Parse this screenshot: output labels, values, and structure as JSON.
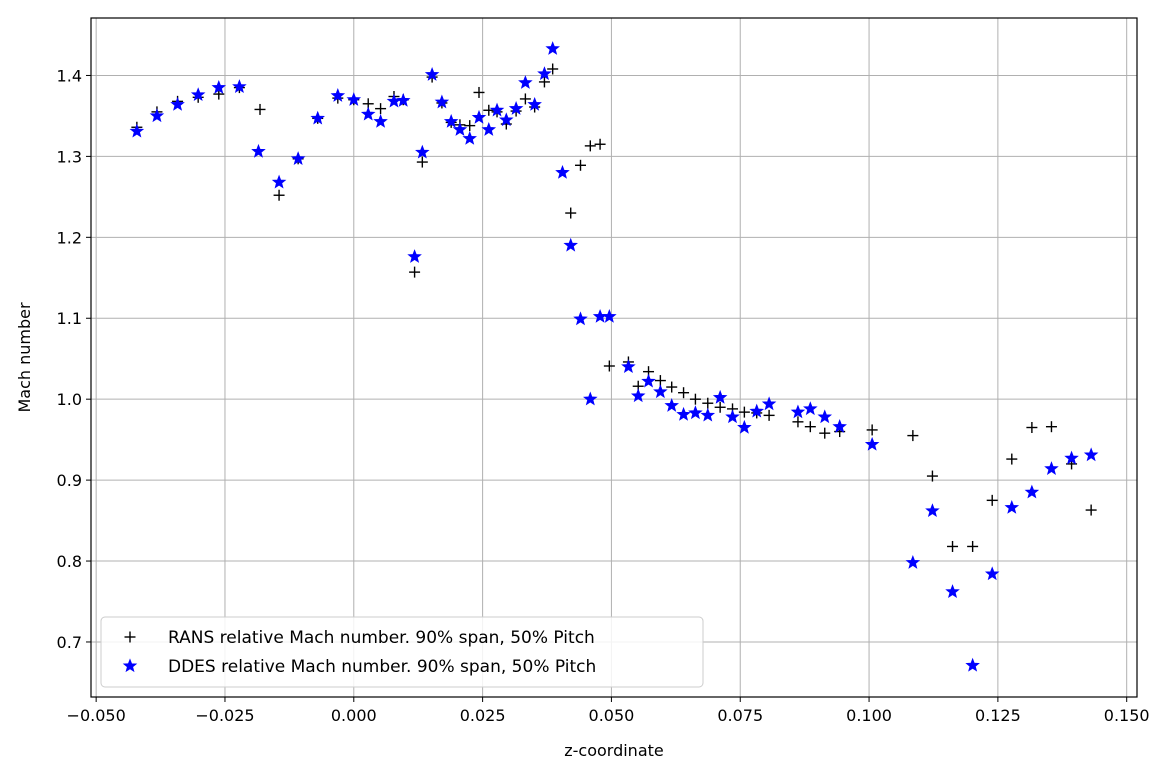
{
  "chart_data": {
    "type": "scatter",
    "xlabel": "z-coordinate",
    "ylabel": "Mach number",
    "xlim": [
      -0.051,
      0.152
    ],
    "ylim": [
      0.632,
      1.471
    ],
    "xticks": [
      -0.05,
      -0.025,
      0.0,
      0.025,
      0.05,
      0.075,
      0.1,
      0.125,
      0.15
    ],
    "xtick_labels": [
      "−0.050",
      "−0.025",
      "0.000",
      "0.025",
      "0.050",
      "0.075",
      "0.100",
      "0.125",
      "0.150"
    ],
    "yticks": [
      0.7,
      0.8,
      0.9,
      1.0,
      1.1,
      1.2,
      1.3,
      1.4
    ],
    "ytick_labels": [
      "0.7",
      "0.8",
      "0.9",
      "1.0",
      "1.1",
      "1.2",
      "1.3",
      "1.4"
    ],
    "grid": true,
    "legend_position": "bottom-left",
    "series": [
      {
        "name": "RANS relative Mach number. 90% span, 50% Pitch",
        "marker": "plus",
        "color": "#000000",
        "points": [
          [
            -0.0421,
            1.336
          ],
          [
            -0.0382,
            1.355
          ],
          [
            -0.0342,
            1.368
          ],
          [
            -0.0302,
            1.373
          ],
          [
            -0.0262,
            1.377
          ],
          [
            -0.0222,
            1.385
          ],
          [
            -0.0182,
            1.358
          ],
          [
            -0.0145,
            1.252
          ],
          [
            -0.0108,
            1.297
          ],
          [
            -0.007,
            1.347
          ],
          [
            -0.0031,
            1.372
          ],
          [
            0.0,
            1.37
          ],
          [
            0.0028,
            1.365
          ],
          [
            0.0052,
            1.359
          ],
          [
            0.0078,
            1.374
          ],
          [
            0.0096,
            1.37
          ],
          [
            0.0118,
            1.157
          ],
          [
            0.0133,
            1.293
          ],
          [
            0.0152,
            1.398
          ],
          [
            0.0171,
            1.366
          ],
          [
            0.0189,
            1.342
          ],
          [
            0.0206,
            1.339
          ],
          [
            0.0225,
            1.338
          ],
          [
            0.0243,
            1.379
          ],
          [
            0.0262,
            1.357
          ],
          [
            0.0278,
            1.355
          ],
          [
            0.0296,
            1.34
          ],
          [
            0.0315,
            1.356
          ],
          [
            0.0333,
            1.371
          ],
          [
            0.0351,
            1.361
          ],
          [
            0.037,
            1.392
          ],
          [
            0.0386,
            1.408
          ],
          [
            0.0421,
            1.23
          ],
          [
            0.044,
            1.289
          ],
          [
            0.0459,
            1.313
          ],
          [
            0.0478,
            1.315
          ],
          [
            0.0496,
            1.041
          ],
          [
            0.0533,
            1.046
          ],
          [
            0.0552,
            1.016
          ],
          [
            0.0572,
            1.034
          ],
          [
            0.0595,
            1.023
          ],
          [
            0.0617,
            1.015
          ],
          [
            0.064,
            1.008
          ],
          [
            0.0663,
            1.0
          ],
          [
            0.0687,
            0.995
          ],
          [
            0.0711,
            0.99
          ],
          [
            0.0735,
            0.988
          ],
          [
            0.0758,
            0.984
          ],
          [
            0.0782,
            0.983
          ],
          [
            0.0806,
            0.98
          ],
          [
            0.0862,
            0.972
          ],
          [
            0.0886,
            0.966
          ],
          [
            0.0914,
            0.958
          ],
          [
            0.0943,
            0.96
          ],
          [
            0.1006,
            0.962
          ],
          [
            0.1085,
            0.955
          ],
          [
            0.1123,
            0.905
          ],
          [
            0.1162,
            0.818
          ],
          [
            0.1201,
            0.818
          ],
          [
            0.1239,
            0.875
          ],
          [
            0.1277,
            0.926
          ],
          [
            0.1316,
            0.965
          ],
          [
            0.1354,
            0.966
          ],
          [
            0.1393,
            0.92
          ],
          [
            0.1431,
            0.863
          ]
        ]
      },
      {
        "name": "DDES relative Mach number. 90% span, 50% Pitch",
        "marker": "star",
        "color": "#0000ff",
        "points": [
          [
            -0.0421,
            1.331
          ],
          [
            -0.0382,
            1.35
          ],
          [
            -0.0342,
            1.364
          ],
          [
            -0.0302,
            1.376
          ],
          [
            -0.0262,
            1.385
          ],
          [
            -0.0222,
            1.386
          ],
          [
            -0.0185,
            1.306
          ],
          [
            -0.0145,
            1.268
          ],
          [
            -0.0108,
            1.297
          ],
          [
            -0.007,
            1.347
          ],
          [
            -0.0031,
            1.375
          ],
          [
            0.0,
            1.37
          ],
          [
            0.0028,
            1.352
          ],
          [
            0.0052,
            1.343
          ],
          [
            0.0078,
            1.368
          ],
          [
            0.0096,
            1.369
          ],
          [
            0.0118,
            1.176
          ],
          [
            0.0133,
            1.305
          ],
          [
            0.0152,
            1.401
          ],
          [
            0.0171,
            1.367
          ],
          [
            0.0189,
            1.343
          ],
          [
            0.0206,
            1.333
          ],
          [
            0.0225,
            1.322
          ],
          [
            0.0243,
            1.348
          ],
          [
            0.0262,
            1.333
          ],
          [
            0.0278,
            1.357
          ],
          [
            0.0296,
            1.345
          ],
          [
            0.0315,
            1.359
          ],
          [
            0.0333,
            1.391
          ],
          [
            0.0351,
            1.364
          ],
          [
            0.037,
            1.402
          ],
          [
            0.0386,
            1.433
          ],
          [
            0.0405,
            1.28
          ],
          [
            0.0421,
            1.19
          ],
          [
            0.044,
            1.099
          ],
          [
            0.0459,
            1.0
          ],
          [
            0.0478,
            1.102
          ],
          [
            0.0496,
            1.102
          ],
          [
            0.0533,
            1.04
          ],
          [
            0.0552,
            1.004
          ],
          [
            0.0572,
            1.022
          ],
          [
            0.0595,
            1.009
          ],
          [
            0.0617,
            0.992
          ],
          [
            0.064,
            0.981
          ],
          [
            0.0663,
            0.983
          ],
          [
            0.0687,
            0.98
          ],
          [
            0.0711,
            1.002
          ],
          [
            0.0735,
            0.978
          ],
          [
            0.0758,
            0.965
          ],
          [
            0.0782,
            0.985
          ],
          [
            0.0806,
            0.994
          ],
          [
            0.0862,
            0.984
          ],
          [
            0.0886,
            0.988
          ],
          [
            0.0914,
            0.978
          ],
          [
            0.0943,
            0.966
          ],
          [
            0.1006,
            0.944
          ],
          [
            0.1085,
            0.798
          ],
          [
            0.1123,
            0.862
          ],
          [
            0.1162,
            0.762
          ],
          [
            0.1201,
            0.671
          ],
          [
            0.1239,
            0.784
          ],
          [
            0.1277,
            0.866
          ],
          [
            0.1316,
            0.885
          ],
          [
            0.1354,
            0.914
          ],
          [
            0.1393,
            0.927
          ],
          [
            0.1431,
            0.931
          ]
        ]
      }
    ]
  }
}
